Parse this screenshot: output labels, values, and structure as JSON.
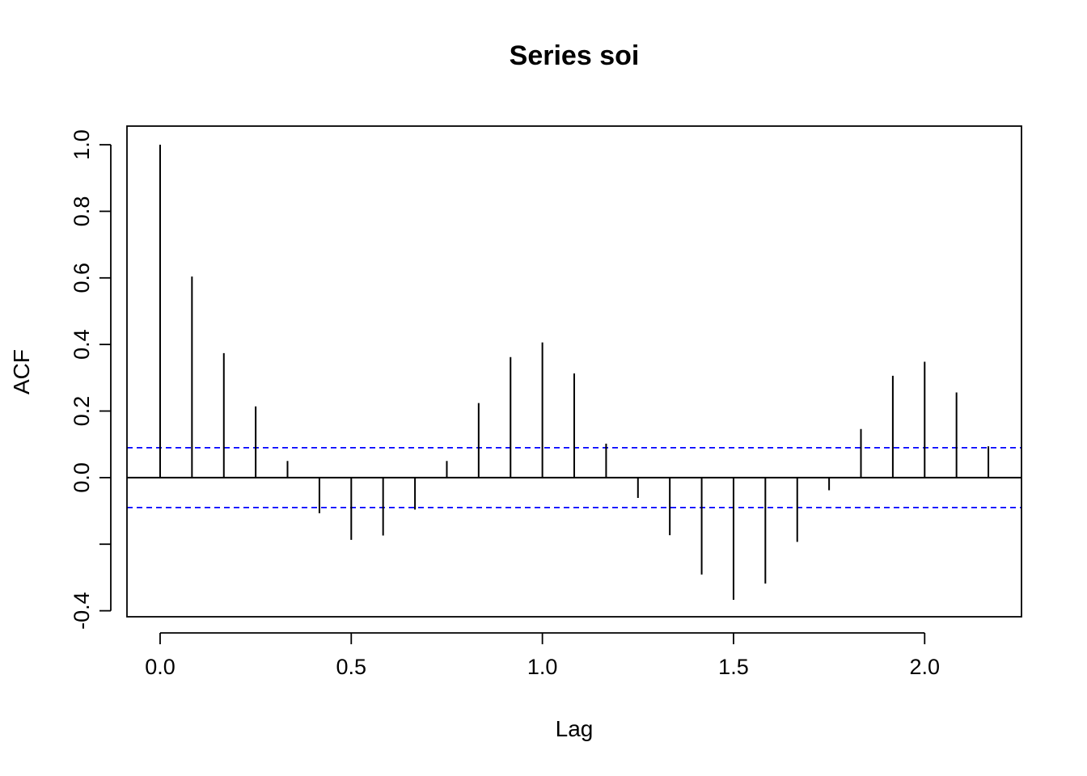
{
  "chart_data": {
    "type": "bar",
    "title": "Series  soi",
    "xlabel": "Lag",
    "ylabel": "ACF",
    "xlim": [
      -0.0867,
      2.2533
    ],
    "ylim": [
      -0.418,
      1.056
    ],
    "x_ticks": [
      0.0,
      0.5,
      1.0,
      1.5,
      2.0
    ],
    "x_tick_labels": [
      "0.0",
      "0.5",
      "1.0",
      "1.5",
      "2.0"
    ],
    "y_ticks": [
      -0.4,
      -0.2,
      0.0,
      0.2,
      0.4,
      0.6,
      0.8,
      1.0
    ],
    "y_tick_labels": [
      "-0.4",
      "",
      "0.0",
      "0.2",
      "0.4",
      "0.6",
      "0.8",
      "1.0"
    ],
    "confidence_bound": 0.0899,
    "confidence_line_color": "#0000ff",
    "line_color": "#000000",
    "grid": false,
    "series": [
      {
        "x": [
          0.0,
          0.0833,
          0.1667,
          0.25,
          0.3333,
          0.4167,
          0.5,
          0.5833,
          0.6667,
          0.75,
          0.8333,
          0.9167,
          1.0,
          1.0833,
          1.1667,
          1.25,
          1.3333,
          1.4167,
          1.5,
          1.5833,
          1.6667,
          1.75,
          1.8333,
          1.9167,
          2.0,
          2.0833,
          2.1667
        ],
        "values": [
          1.0,
          0.604,
          0.374,
          0.214,
          0.05,
          -0.107,
          -0.187,
          -0.174,
          -0.096,
          0.05,
          0.224,
          0.362,
          0.406,
          0.313,
          0.102,
          -0.061,
          -0.173,
          -0.291,
          -0.367,
          -0.318,
          -0.193,
          -0.038,
          0.146,
          0.306,
          0.348,
          0.256,
          0.094
        ]
      }
    ]
  }
}
